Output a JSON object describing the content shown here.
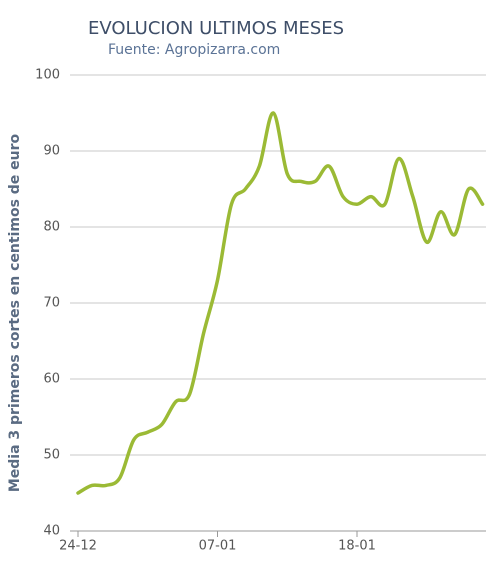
{
  "chart_data": {
    "type": "line",
    "title": "EVOLUCION ULTIMOS MESES",
    "subtitle": "Fuente: Agropizarra.com",
    "y_label": "Media 3 primeros cortes en centimos de euro",
    "categories": [
      "24-12",
      null,
      null,
      null,
      null,
      null,
      null,
      null,
      null,
      null,
      "07-01",
      null,
      null,
      null,
      null,
      null,
      null,
      null,
      null,
      null,
      "18-01",
      null,
      null,
      null,
      null,
      null,
      null,
      null,
      null,
      null
    ],
    "series": [
      {
        "name": "Media",
        "color": "#9bba35",
        "values": [
          45,
          46,
          46,
          47,
          52,
          53,
          54,
          57,
          58,
          66,
          73,
          83,
          85,
          88,
          95,
          87,
          86,
          86,
          88,
          84,
          83,
          84,
          83,
          89,
          84,
          78,
          82,
          79,
          85,
          83
        ]
      }
    ],
    "ylim": [
      40,
      100
    ],
    "yticks": [
      40,
      50,
      60,
      70,
      80,
      90,
      100
    ],
    "grid": true
  }
}
